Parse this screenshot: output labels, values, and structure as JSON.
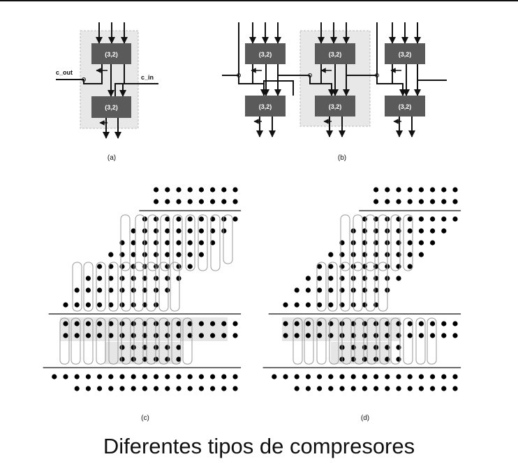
{
  "compressor": {
    "label": "(3,2)",
    "carry_out": "c_out",
    "carry_in": "c_in"
  },
  "subfigures": {
    "a": "(a)",
    "b": "(b)",
    "c": "(c)",
    "d": "(d)"
  },
  "caption": "Diferentes tipos de compresores",
  "colors": {
    "line": "#111111",
    "block_fill": "#5a5a5a",
    "block_text": "#ffffff",
    "shade": "#e6e6e6",
    "dot": "#000000"
  }
}
